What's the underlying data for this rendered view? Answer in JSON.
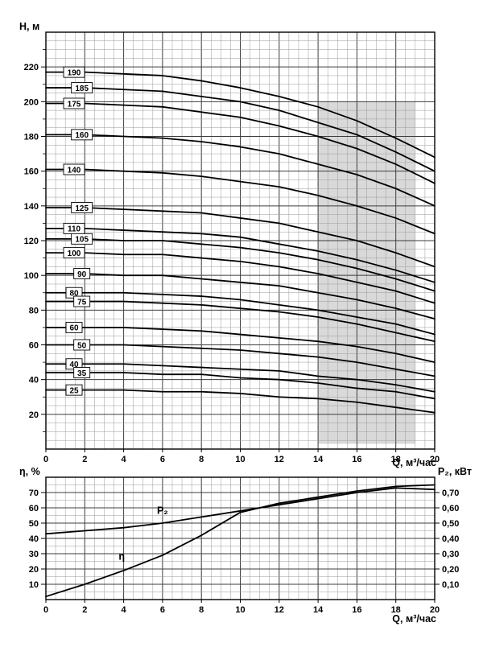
{
  "page": {
    "background": "#ffffff"
  },
  "chart_data": [
    {
      "type": "line",
      "name": "head-vs-flow",
      "ylabel": "Н, м",
      "xlabel": "Q, м³/час",
      "xlim": [
        0,
        20
      ],
      "ylim": [
        0,
        240
      ],
      "x_tick_step": 2,
      "y_tick_step": 20,
      "x_minor": 0.5,
      "y_minor": 5,
      "x_tick_labels": [
        0,
        2,
        4,
        6,
        8,
        10,
        12,
        14,
        16,
        18,
        20
      ],
      "y_tick_labels": [
        20,
        40,
        60,
        80,
        100,
        120,
        140,
        160,
        180,
        200,
        220
      ],
      "x": [
        0,
        2,
        4,
        6,
        8,
        10,
        12,
        14,
        16,
        18,
        20
      ],
      "band": {
        "q_from": 14,
        "q_to": 19,
        "v_from": 3,
        "v_to": 200,
        "color": "#d9d9d9"
      },
      "series": [
        {
          "label": "190",
          "values": [
            217,
            217,
            216,
            215,
            212,
            208,
            203,
            197,
            189,
            179,
            168
          ]
        },
        {
          "label": "185",
          "values": [
            208,
            208,
            207,
            206,
            203,
            200,
            195,
            188,
            181,
            171,
            160
          ]
        },
        {
          "label": "175",
          "values": [
            199,
            199,
            198,
            197,
            194,
            191,
            186,
            180,
            173,
            164,
            153
          ]
        },
        {
          "label": "160",
          "values": [
            181,
            181,
            180,
            179,
            177,
            174,
            170,
            164,
            158,
            150,
            140
          ]
        },
        {
          "label": "140",
          "values": [
            161,
            161,
            160,
            159,
            157,
            154,
            151,
            146,
            140,
            133,
            124
          ]
        },
        {
          "label": "125",
          "values": [
            139,
            139,
            138,
            137,
            136,
            133,
            130,
            125,
            120,
            113,
            105
          ]
        },
        {
          "label": "110",
          "values": [
            127,
            127,
            126,
            125,
            124,
            122,
            118,
            114,
            109,
            103,
            96
          ]
        },
        {
          "label": "105",
          "values": [
            121,
            121,
            120,
            120,
            118,
            116,
            113,
            109,
            104,
            98,
            91
          ]
        },
        {
          "label": "100",
          "values": [
            113,
            113,
            112,
            112,
            110,
            108,
            105,
            101,
            96,
            91,
            84
          ]
        },
        {
          "label": "90",
          "values": [
            101,
            101,
            100,
            100,
            98,
            96,
            94,
            90,
            86,
            81,
            75
          ]
        },
        {
          "label": "80",
          "values": [
            90,
            90,
            90,
            89,
            88,
            86,
            83,
            80,
            76,
            72,
            66
          ]
        },
        {
          "label": "75",
          "values": [
            85,
            85,
            85,
            84,
            83,
            81,
            79,
            76,
            72,
            67,
            62
          ]
        },
        {
          "label": "60",
          "values": [
            70,
            70,
            70,
            69,
            68,
            66,
            64,
            62,
            59,
            55,
            50
          ]
        },
        {
          "label": "50",
          "values": [
            60,
            60,
            60,
            59,
            58,
            57,
            55,
            53,
            50,
            46,
            42
          ]
        },
        {
          "label": "40",
          "values": [
            49,
            49,
            49,
            48,
            47,
            46,
            45,
            42,
            40,
            37,
            33
          ]
        },
        {
          "label": "35",
          "values": [
            44,
            44,
            44,
            43,
            43,
            41,
            40,
            38,
            35,
            33,
            29
          ]
        },
        {
          "label": "25",
          "values": [
            34,
            34,
            34,
            33,
            33,
            32,
            30,
            29,
            27,
            24,
            21
          ]
        }
      ]
    },
    {
      "type": "line",
      "name": "efficiency-and-power-vs-flow",
      "ylabel_left": "η, %",
      "ylabel_right": "P₂, кВт",
      "xlabel": "Q, м³/час",
      "xlim": [
        0,
        20
      ],
      "ylim_left": [
        0,
        80
      ],
      "x_tick_step": 2,
      "y_tick_step": 10,
      "x_minor": 0.5,
      "y_minor": 5,
      "x_tick_labels": [
        0,
        2,
        4,
        6,
        8,
        10,
        12,
        14,
        16,
        18,
        20
      ],
      "left_tick_labels": [
        10,
        20,
        30,
        40,
        50,
        60,
        70
      ],
      "right_tick_labels": [
        "0,10",
        "0,20",
        "0,30",
        "0,40",
        "0,50",
        "0,60",
        "0,70"
      ],
      "right_scale": 100,
      "x": [
        0,
        2,
        4,
        6,
        8,
        10,
        12,
        14,
        16,
        18,
        20
      ],
      "series": [
        {
          "label": "η",
          "axis": "left",
          "values": [
            2,
            10,
            19,
            29,
            42,
            57,
            63,
            67,
            71,
            74,
            75
          ],
          "annotation": {
            "q": 3.9,
            "v": 26
          }
        },
        {
          "label": "P₂",
          "axis": "right",
          "values": [
            0.43,
            0.45,
            0.47,
            0.5,
            0.54,
            0.58,
            0.62,
            0.66,
            0.7,
            0.73,
            0.72
          ],
          "annotation": {
            "q": 6.0,
            "v": 56
          }
        }
      ]
    }
  ]
}
